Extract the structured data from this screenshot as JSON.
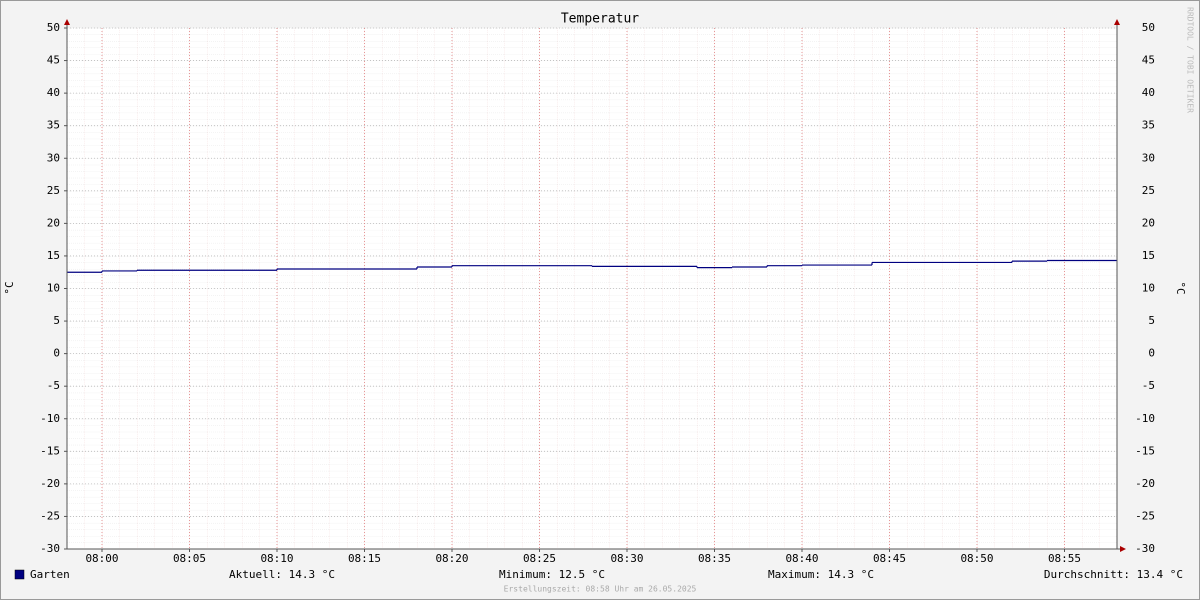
{
  "chart_data": {
    "type": "line",
    "line_style": "step",
    "title": "Temperatur",
    "y_label": "°C",
    "watermark": "RRDTOOL / TOBI OETIKER",
    "x": [
      "07:58",
      "08:00",
      "08:02",
      "08:10",
      "08:18",
      "08:20",
      "08:28",
      "08:34",
      "08:36",
      "08:38",
      "08:40",
      "08:44",
      "08:52",
      "08:54"
    ],
    "series": [
      {
        "name": "Garten",
        "color": "#000080",
        "values": [
          12.5,
          12.7,
          12.8,
          13.0,
          13.3,
          13.5,
          13.4,
          13.2,
          13.3,
          13.5,
          13.6,
          14.0,
          14.2,
          14.3
        ]
      }
    ],
    "xlim": [
      "07:58",
      "08:58"
    ],
    "xticks": [
      "08:00",
      "08:05",
      "08:10",
      "08:15",
      "08:20",
      "08:25",
      "08:30",
      "08:35",
      "08:40",
      "08:45",
      "08:50",
      "08:55"
    ],
    "ylim": [
      -30,
      50
    ],
    "yticks": [
      50,
      45,
      40,
      35,
      30,
      25,
      20,
      15,
      10,
      5,
      0,
      -5,
      -10,
      -15,
      -20,
      -25,
      -30
    ],
    "grid": true,
    "legend_stats": [
      "Aktuell: 14.3 °C",
      "Minimum: 12.5 °C",
      "Maximum: 14.3 °C",
      "Durchschnitt: 13.4 °C"
    ],
    "footer": "Erstellungszeit: 08:58 Uhr am 26.05.2025"
  }
}
